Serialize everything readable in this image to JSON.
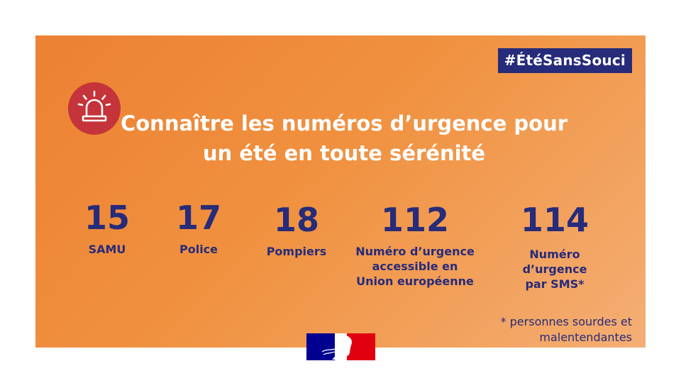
{
  "hashtag": "#ÉtéSansSouci",
  "title": {
    "line1": "Connaître les numéros d’urgence pour",
    "line2": "un été en toute sérénité"
  },
  "numbers": [
    {
      "number": "15",
      "label": "SAMU"
    },
    {
      "number": "17",
      "label": "Police"
    },
    {
      "number": "18",
      "label": "Pompiers"
    },
    {
      "number": "112",
      "label_lines": [
        "Numéro d’urgence",
        "accessible en",
        "Union européenne"
      ]
    },
    {
      "number": "114",
      "label_lines": [
        "Numéro",
        "d’urgence",
        "par SMS*"
      ]
    }
  ],
  "footnote": {
    "line1": "* personnes sourdes et",
    "line2": "malentendantes"
  },
  "colors": {
    "card_orange": "#ec8133",
    "navy": "#262b7a",
    "alarm_red": "#c4343a",
    "flag_blue": "#000091",
    "flag_red": "#e1000f"
  },
  "icons": {
    "alarm": "siren-icon",
    "logo": "marianne-logo"
  }
}
